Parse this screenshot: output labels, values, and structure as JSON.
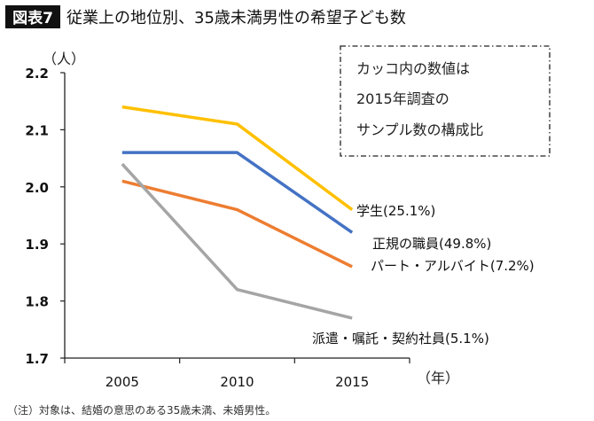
{
  "header": {
    "badge": "図表7",
    "title": "従業上の地位別、35歳未満男性の希望子ども数"
  },
  "note_box": {
    "lines": [
      "カッコ内の数値は",
      "2015年調査の",
      "サンプル数の構成比"
    ]
  },
  "footnote": "（注）対象は、結婚の意思のある35歳未満、未婚男性。",
  "chart_data": {
    "type": "line",
    "title": "従業上の地位別、35歳未満男性の希望子ども数",
    "xlabel": "（年）",
    "ylabel": "（人）",
    "categories": [
      "2005",
      "2010",
      "2015"
    ],
    "ylim": [
      1.7,
      2.2
    ],
    "yticks": [
      "2.2",
      "2.1",
      "2.0",
      "1.9",
      "1.8",
      "1.7"
    ],
    "grid": false,
    "legend": "inline labels at line ends",
    "series": [
      {
        "name": "学生(25.1%)",
        "color": "#FFC000",
        "values": [
          2.14,
          2.11,
          1.96
        ]
      },
      {
        "name": "正規の職員(49.8%)",
        "color": "#4472C4",
        "values": [
          2.06,
          2.06,
          1.92
        ]
      },
      {
        "name": "パート・アルバイト(7.2%)",
        "color": "#ED7D31",
        "values": [
          2.01,
          1.96,
          1.86
        ]
      },
      {
        "name": "派遣・嘱託・契約社員(5.1%)",
        "color": "#A5A5A5",
        "values": [
          2.04,
          1.82,
          1.77
        ]
      }
    ]
  }
}
